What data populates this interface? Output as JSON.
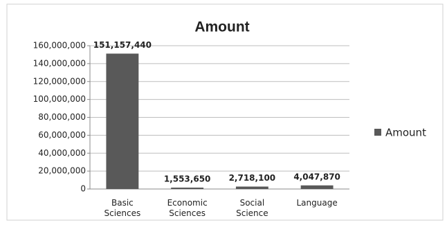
{
  "chart_data": {
    "type": "bar",
    "title": "Amount",
    "categories": [
      "Basic Sciences",
      "Economic Sciences",
      "Social Science",
      "Language"
    ],
    "series": [
      {
        "name": "Amount",
        "color": "#595959",
        "values": [
          151157440,
          1553650,
          2718100,
          4047870
        ],
        "value_labels": [
          "151,157,440",
          "1,553,650",
          "2,718,100",
          "4,047,870"
        ]
      }
    ],
    "ylim": [
      0,
      160000000
    ],
    "yticks": [
      0,
      {
        "value": 20000000,
        "label": "20,000,000"
      },
      {
        "value": 40000000,
        "label": "40,000,000"
      },
      {
        "value": 60000000,
        "label": "60,000,000"
      },
      {
        "value": 80000000,
        "label": "80,000,000"
      },
      {
        "value": 100000000,
        "label": "100,000,000"
      },
      {
        "value": 120000000,
        "label": "120,000,000"
      },
      {
        "value": 140000000,
        "label": "140,000,000"
      },
      {
        "value": 160000000,
        "label": "160,000,000"
      }
    ],
    "grid": true,
    "legend": "right"
  }
}
